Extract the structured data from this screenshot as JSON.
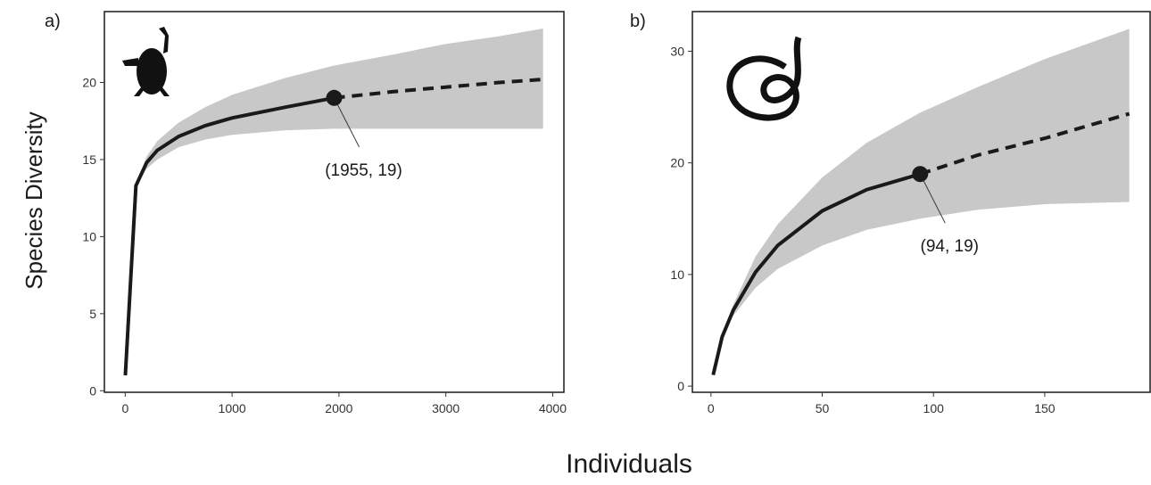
{
  "ylabel": "Species Diversity",
  "xlabel": "Individuals",
  "chart_data": [
    {
      "type": "line",
      "panel_label": "a)",
      "x": [
        1,
        100,
        200,
        300,
        500,
        750,
        1000,
        1500,
        1955,
        2500,
        3000,
        3500,
        3910
      ],
      "series": [
        {
          "color": "#1a1a1a",
          "style": "solid",
          "values": [
            1,
            13.3,
            14.8,
            15.6,
            16.5,
            17.2,
            17.7,
            18.4,
            19,
            null,
            null,
            null,
            null
          ]
        },
        {
          "color": "#1a1a1a",
          "style": "dashed",
          "values": [
            null,
            null,
            null,
            null,
            null,
            null,
            null,
            null,
            19,
            19.4,
            19.7,
            20.0,
            20.2
          ]
        }
      ],
      "band": {
        "color": "#c8c8c8",
        "lower": [
          1,
          13.3,
          14.4,
          15.0,
          15.8,
          16.3,
          16.6,
          16.9,
          17.0,
          17.0,
          17.0,
          17.0,
          17.0
        ],
        "upper": [
          1,
          13.3,
          15.2,
          16.2,
          17.4,
          18.4,
          19.2,
          20.3,
          21.1,
          21.8,
          22.5,
          23.0,
          23.5
        ]
      },
      "annotation": {
        "x": 1955,
        "y": 19,
        "label": "(1955, 19)"
      },
      "xlim": [
        -195,
        4105
      ],
      "ylim": [
        -0.1,
        24.6
      ],
      "xticks": [
        0,
        1000,
        2000,
        3000,
        4000
      ],
      "yticks": [
        0,
        5,
        10,
        15,
        20
      ]
    },
    {
      "type": "line",
      "panel_label": "b)",
      "x": [
        1,
        5,
        10,
        20,
        30,
        50,
        70,
        94,
        120,
        150,
        188
      ],
      "series": [
        {
          "color": "#1a1a1a",
          "style": "solid",
          "values": [
            1,
            4.4,
            6.8,
            10.2,
            12.6,
            15.7,
            17.6,
            19,
            null,
            null,
            null
          ]
        },
        {
          "color": "#1a1a1a",
          "style": "dashed",
          "values": [
            null,
            null,
            null,
            null,
            null,
            null,
            null,
            19,
            20.7,
            22.2,
            24.4
          ]
        }
      ],
      "band": {
        "color": "#c8c8c8",
        "lower": [
          1,
          4.4,
          6.3,
          8.8,
          10.5,
          12.6,
          14.0,
          15.0,
          15.8,
          16.3,
          16.5
        ],
        "upper": [
          1,
          4.4,
          7.3,
          11.6,
          14.5,
          18.7,
          21.8,
          24.5,
          26.8,
          29.3,
          32.0
        ]
      },
      "annotation": {
        "x": 94,
        "y": 19,
        "label": "(94, 19)"
      },
      "xlim": [
        -8.35,
        197.35
      ],
      "ylim": [
        -0.55,
        33.55
      ],
      "xticks": [
        0,
        50,
        100,
        150
      ],
      "yticks": [
        0,
        10,
        20,
        30
      ]
    }
  ]
}
